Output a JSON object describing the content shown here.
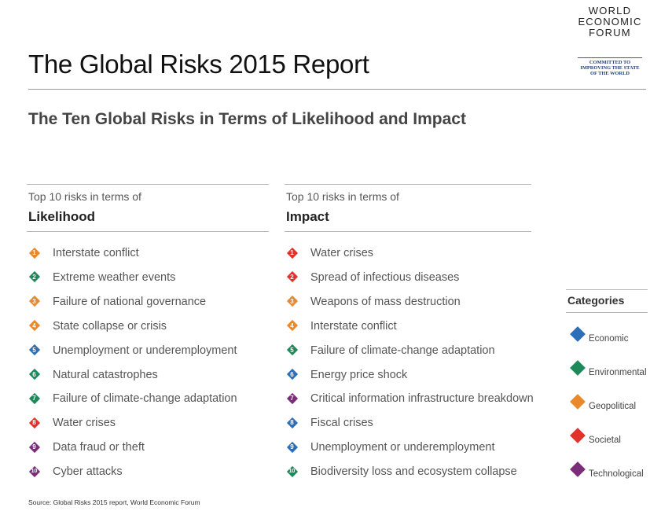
{
  "header": {
    "title": "The Global Risks 2015 Report",
    "subtitle": "The Ten Global Risks in Terms of Likelihood and Impact"
  },
  "logo": {
    "line1": "WORLD",
    "line2": "ECONOMIC",
    "line3": "FORUM",
    "tagline1": "COMMITTED TO",
    "tagline2": "IMPROVING THE STATE",
    "tagline3": "OF THE WORLD"
  },
  "likelihood": {
    "heading_small": "Top 10 risks in terms of",
    "heading_big": "Likelihood",
    "items": [
      {
        "num": "1",
        "label": "Interstate conflict",
        "category": "geopolitical"
      },
      {
        "num": "2",
        "label": "Extreme weather events",
        "category": "environmental"
      },
      {
        "num": "3",
        "label": "Failure of national governance",
        "category": "geopolitical"
      },
      {
        "num": "4",
        "label": "State collapse or crisis",
        "category": "geopolitical"
      },
      {
        "num": "5",
        "label": "Unemployment or underemployment",
        "category": "economic"
      },
      {
        "num": "6",
        "label": "Natural catastrophes",
        "category": "environmental"
      },
      {
        "num": "7",
        "label": "Failure of climate-change adaptation",
        "category": "environmental"
      },
      {
        "num": "8",
        "label": "Water crises",
        "category": "societal"
      },
      {
        "num": "9",
        "label": "Data fraud or theft",
        "category": "technological"
      },
      {
        "num": "10",
        "label": "Cyber attacks",
        "category": "technological"
      }
    ]
  },
  "impact": {
    "heading_small": "Top 10 risks in terms of",
    "heading_big": "Impact",
    "items": [
      {
        "num": "1",
        "label": "Water crises",
        "category": "societal"
      },
      {
        "num": "2",
        "label": "Spread of infectious diseases",
        "category": "societal"
      },
      {
        "num": "3",
        "label": "Weapons of mass destruction",
        "category": "geopolitical"
      },
      {
        "num": "4",
        "label": "Interstate conflict",
        "category": "geopolitical"
      },
      {
        "num": "5",
        "label": "Failure of climate-change adaptation",
        "category": "environmental"
      },
      {
        "num": "6",
        "label": "Energy price shock",
        "category": "economic"
      },
      {
        "num": "7",
        "label": "Critical information infrastructure breakdown",
        "category": "technological"
      },
      {
        "num": "8",
        "label": "Fiscal crises",
        "category": "economic"
      },
      {
        "num": "9",
        "label": "Unemployment or underemployment",
        "category": "economic"
      },
      {
        "num": "10",
        "label": "Biodiversity loss and ecosystem collapse",
        "category": "environmental"
      }
    ]
  },
  "categories": {
    "title": "Categories",
    "items": [
      {
        "key": "economic",
        "label": "Economic"
      },
      {
        "key": "environmental",
        "label": "Environmental"
      },
      {
        "key": "geopolitical",
        "label": "Geopolitical"
      },
      {
        "key": "societal",
        "label": "Societal"
      },
      {
        "key": "technological",
        "label": "Technological"
      }
    ]
  },
  "colors": {
    "economic": "#2a6fb8",
    "environmental": "#1e8a5a",
    "geopolitical": "#e9892b",
    "societal": "#e2322c",
    "technological": "#7b2d7a"
  },
  "source": "Source: Global Risks 2015 report, World Economic Forum"
}
